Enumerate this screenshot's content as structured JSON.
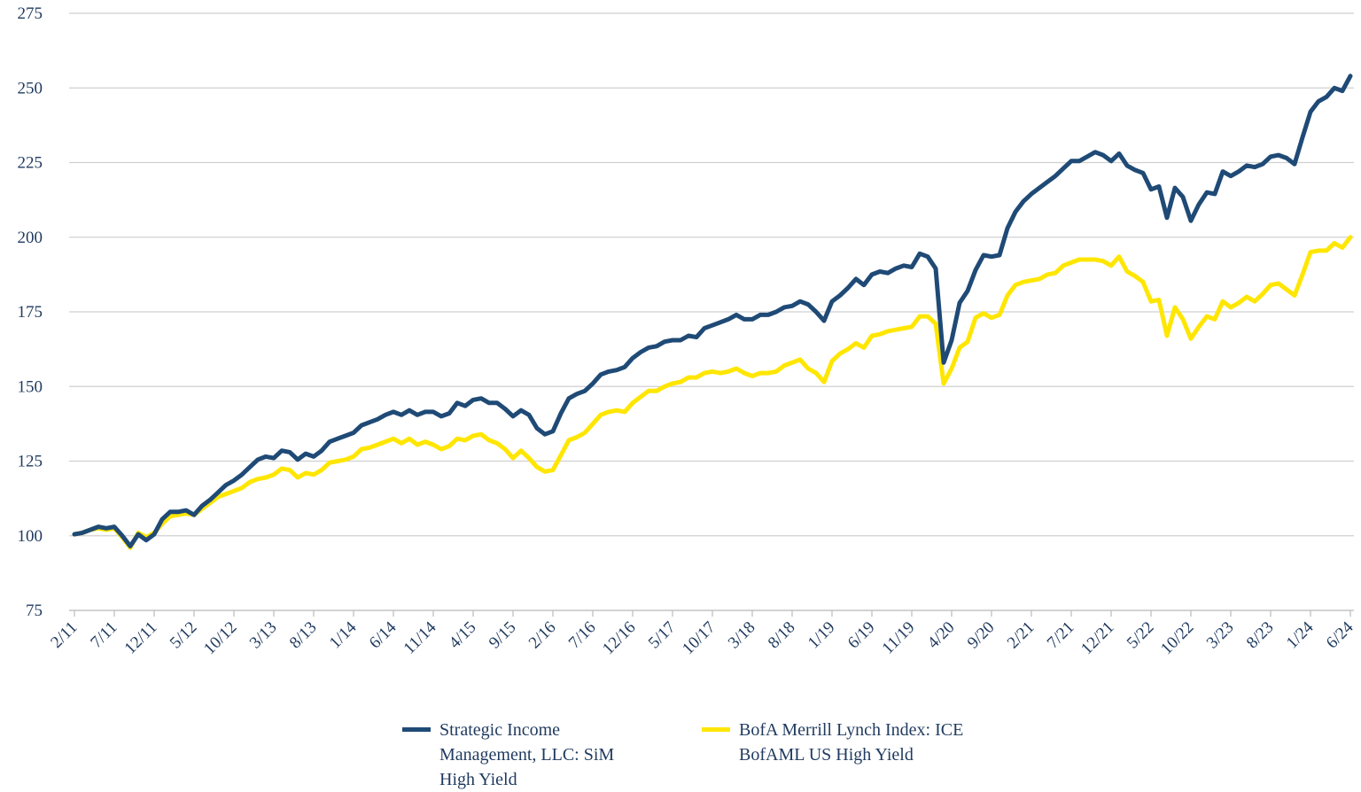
{
  "chart_data": {
    "type": "line",
    "categories": [
      "2/11",
      null,
      null,
      null,
      null,
      "7/11",
      null,
      null,
      null,
      null,
      "12/11",
      null,
      null,
      null,
      null,
      "5/12",
      null,
      null,
      null,
      null,
      "10/12",
      null,
      null,
      null,
      null,
      "3/13",
      null,
      null,
      null,
      null,
      "8/13",
      null,
      null,
      null,
      null,
      "1/14",
      null,
      null,
      null,
      null,
      "6/14",
      null,
      null,
      null,
      null,
      "11/14",
      null,
      null,
      null,
      null,
      "4/15",
      null,
      null,
      null,
      null,
      "9/15",
      null,
      null,
      null,
      null,
      "2/16",
      null,
      null,
      null,
      null,
      "7/16",
      null,
      null,
      null,
      null,
      "12/16",
      null,
      null,
      null,
      null,
      "5/17",
      null,
      null,
      null,
      null,
      "10/17",
      null,
      null,
      null,
      null,
      "3/18",
      null,
      null,
      null,
      null,
      "8/18",
      null,
      null,
      null,
      null,
      "1/19",
      null,
      null,
      null,
      null,
      "6/19",
      null,
      null,
      null,
      null,
      "11/19",
      null,
      null,
      null,
      null,
      "4/20",
      null,
      null,
      null,
      null,
      "9/20",
      null,
      null,
      null,
      null,
      "2/21",
      null,
      null,
      null,
      null,
      "7/21",
      null,
      null,
      null,
      null,
      "12/21",
      null,
      null,
      null,
      null,
      "5/22",
      null,
      null,
      null,
      null,
      "10/22",
      null,
      null,
      null,
      null,
      "3/23",
      null,
      null,
      null,
      null,
      "8/23",
      null,
      null,
      null,
      null,
      "1/24",
      null,
      null,
      null,
      null,
      "6/24"
    ],
    "series": [
      {
        "name": "Strategic Income Management, LLC: SiM High Yield",
        "color": "#1f4a76",
        "values": [
          100.5,
          101,
          102,
          103,
          102.5,
          103,
          100,
          96.5,
          100.5,
          98.5,
          100.5,
          105.5,
          108,
          108,
          108.5,
          107,
          110,
          112,
          114.5,
          117,
          118.5,
          120.5,
          123,
          125.5,
          126.5,
          126,
          128.5,
          128,
          125.5,
          127.5,
          126.5,
          128.5,
          131.5,
          132.5,
          133.5,
          134.5,
          137,
          138,
          139,
          140.5,
          141.5,
          140.5,
          142,
          140.5,
          141.5,
          141.5,
          140,
          141,
          144.5,
          143.5,
          145.5,
          146,
          144.5,
          144.5,
          142.5,
          140,
          142,
          140.5,
          136,
          134,
          135,
          141,
          146,
          147.5,
          148.5,
          151,
          154,
          155,
          155.5,
          156.5,
          159.5,
          161.5,
          163,
          163.5,
          165,
          165.5,
          165.5,
          167,
          166.5,
          169.5,
          170.5,
          171.5,
          172.5,
          174,
          172.5,
          172.5,
          174,
          174,
          175,
          176.5,
          177,
          178.5,
          177.5,
          175,
          172,
          178.5,
          180.5,
          183,
          186,
          184,
          187.5,
          188.5,
          188,
          189.5,
          190.5,
          190,
          194.5,
          193.5,
          189.5,
          158,
          165.5,
          178,
          182,
          189,
          194,
          193.5,
          194,
          203,
          208.5,
          212,
          214.5,
          216.5,
          218.5,
          220.5,
          223,
          225.5,
          225.5,
          227,
          228.5,
          227.5,
          225.5,
          228,
          224,
          222.5,
          221.5,
          216,
          217,
          206.5,
          216.5,
          213.5,
          205.5,
          211,
          215,
          214.5,
          222,
          220.5,
          222,
          224,
          223.5,
          224.5,
          227,
          227.5,
          226.5,
          224.5,
          233.5,
          242,
          245.5,
          247,
          250,
          249,
          254
        ]
      },
      {
        "name": "BofA Merrill Lynch Index: ICE BofAML US High Yield",
        "color": "#ffe600",
        "values": [
          100.5,
          101,
          102,
          102.5,
          102,
          102.5,
          99.5,
          96,
          101,
          99.5,
          101,
          104,
          106.5,
          107,
          107.5,
          107,
          109,
          111,
          113,
          114,
          115,
          116,
          118,
          119,
          119.5,
          120.5,
          122.5,
          122,
          119.5,
          121,
          120.5,
          122,
          124.5,
          125,
          125.5,
          126.5,
          129,
          129.5,
          130.5,
          131.5,
          132.5,
          131,
          132.5,
          130.5,
          131.5,
          130.5,
          129,
          130,
          132.5,
          132,
          133.5,
          134,
          132,
          131,
          129,
          126,
          128.5,
          126,
          123,
          121.5,
          122,
          127,
          132,
          133,
          134.5,
          137.5,
          140.5,
          141.5,
          142,
          141.5,
          144.5,
          146.5,
          148.5,
          148.5,
          150,
          151,
          151.5,
          153,
          153,
          154.5,
          155,
          154.5,
          155,
          156,
          154.5,
          153.5,
          154.5,
          154.5,
          155,
          157,
          158,
          159,
          156,
          154.5,
          151.5,
          158.5,
          161,
          162.5,
          164.5,
          163,
          167,
          167.5,
          168.5,
          169,
          169.5,
          170,
          173.5,
          173.5,
          171,
          151,
          156,
          163,
          165,
          173,
          174.5,
          173,
          174,
          180.5,
          184,
          185,
          185.5,
          186,
          187.5,
          188,
          190.5,
          191.5,
          192.5,
          192.5,
          192.5,
          192,
          190.5,
          193.5,
          188.5,
          187,
          185,
          178.5,
          179,
          167,
          176.5,
          172.5,
          166,
          170,
          173.5,
          172.5,
          178.5,
          176.5,
          178,
          180,
          178.5,
          181,
          184,
          184.5,
          182.5,
          180.5,
          187.5,
          195,
          195.5,
          195.5,
          198,
          196.5,
          200
        ]
      }
    ],
    "ylim": [
      75,
      275
    ],
    "yticks": [
      75,
      100,
      125,
      150,
      175,
      200,
      225,
      250,
      275
    ],
    "grid": true
  }
}
